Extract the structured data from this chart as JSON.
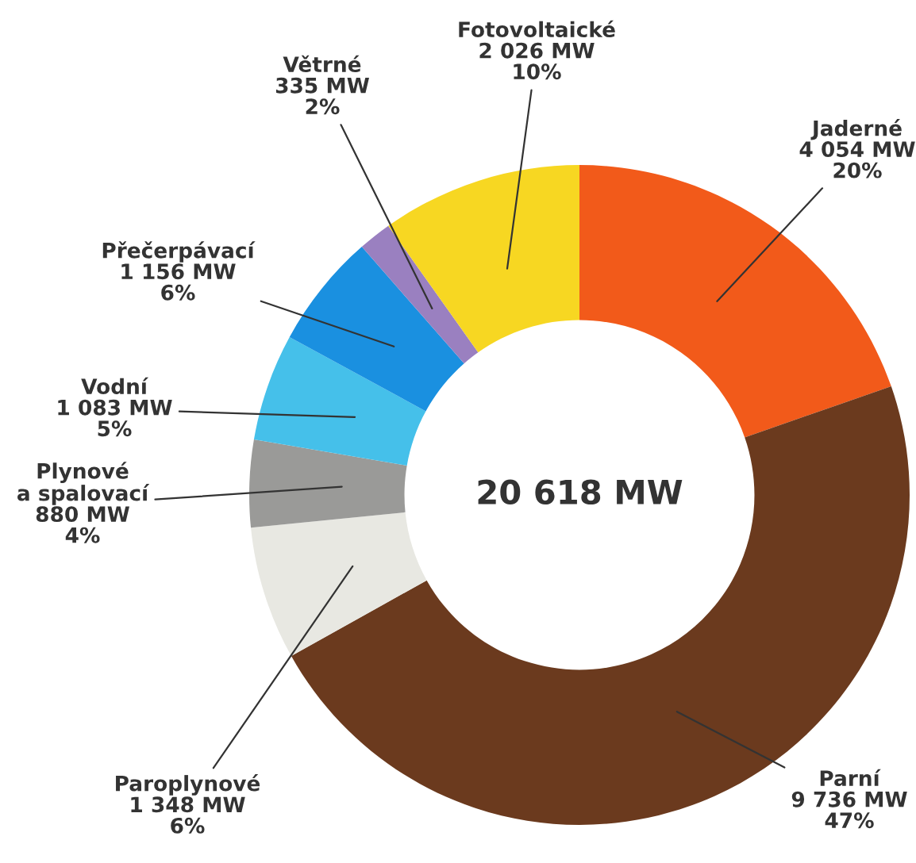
{
  "chart_data": {
    "type": "donut",
    "categories": [
      "Jaderné",
      "Parní",
      "Paroplynové",
      "Plynové\na spalovací",
      "Vodní",
      "Přečerpávací",
      "Větrné",
      "Fotovoltaické"
    ],
    "values": [
      4054,
      9736,
      1348,
      880,
      1083,
      1156,
      335,
      2026
    ],
    "value_labels": [
      "4 054 MW\n20%",
      "9 736 MW\n47%",
      "1 348 MW\n6%",
      "880 MW\n4%",
      "1 083 MW\n5%",
      "1 156 MW\n6%",
      "335 MW\n2%",
      "2 026 MW\n10%"
    ],
    "colors": [
      "#f25a1a",
      "#6b3a1e",
      "#e8e8e2",
      "#9a9a98",
      "#45c0ea",
      "#1a90e0",
      "#9a80c0",
      "#f7d722"
    ],
    "annotations": [
      "20 618 MW"
    ]
  }
}
